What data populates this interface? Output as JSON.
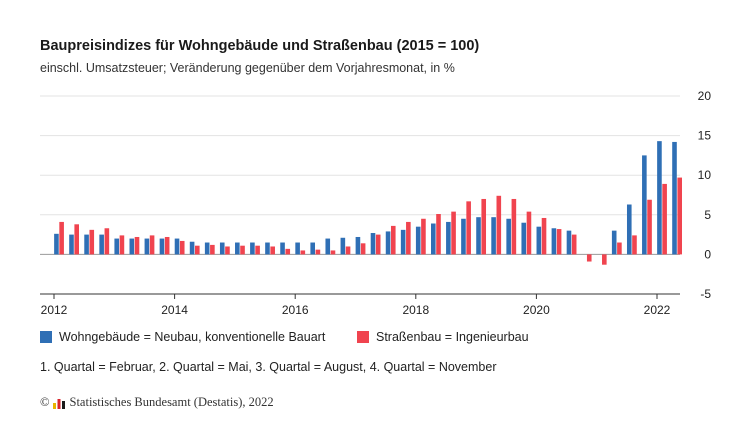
{
  "header": {
    "title": "Baupreisindizes für Wohngebäude und Straßenbau (2015 = 100)",
    "subtitle": "einschl. Umsatzsteuer; Veränderung gegenüber dem Vorjahresmonat, in %"
  },
  "legend": {
    "series1": "Wohngebäude = Neubau, konventionelle Bauart",
    "series2": "Straßenbau = Ingenieurbau"
  },
  "note": "1. Quartal = Februar, 2. Quartal = Mai, 3. Quartal = August, 4. Quartal = November",
  "source": {
    "copyright": "©",
    "text": "Statistisches Bundesamt (Destatis), 2022"
  },
  "colors": {
    "series1": "#2f6fb5",
    "series2": "#f0444f",
    "logo_bar1": "#e8b400",
    "logo_bar2": "#d9262c",
    "logo_bar3": "#1a1a1a"
  },
  "chart_data": {
    "type": "bar",
    "title": "Baupreisindizes für Wohngebäude und Straßenbau (2015 = 100)",
    "subtitle": "einschl. Umsatzsteuer; Veränderung gegenüber dem Vorjahresmonat, in %",
    "x_start": "2012 Q1",
    "x_end": "2022 Q3",
    "categories": [
      "2012 Q1",
      "2012 Q2",
      "2012 Q3",
      "2012 Q4",
      "2013 Q1",
      "2013 Q2",
      "2013 Q3",
      "2013 Q4",
      "2014 Q1",
      "2014 Q2",
      "2014 Q3",
      "2014 Q4",
      "2015 Q1",
      "2015 Q2",
      "2015 Q3",
      "2015 Q4",
      "2016 Q1",
      "2016 Q2",
      "2016 Q3",
      "2016 Q4",
      "2017 Q1",
      "2017 Q2",
      "2017 Q3",
      "2017 Q4",
      "2018 Q1",
      "2018 Q2",
      "2018 Q3",
      "2018 Q4",
      "2019 Q1",
      "2019 Q2",
      "2019 Q3",
      "2019 Q4",
      "2020 Q1",
      "2020 Q2",
      "2020 Q3",
      "2020 Q4",
      "2021 Q1",
      "2021 Q2",
      "2021 Q3",
      "2021 Q4",
      "2022 Q1",
      "2022 Q2"
    ],
    "series": [
      {
        "name": "Wohngebäude = Neubau, konventionelle Bauart",
        "values": [
          2.6,
          2.5,
          2.5,
          2.5,
          2.0,
          2.0,
          2.0,
          2.0,
          2.0,
          1.6,
          1.5,
          1.5,
          1.5,
          1.5,
          1.5,
          1.5,
          1.5,
          1.5,
          2.0,
          2.1,
          2.2,
          2.7,
          2.9,
          3.1,
          3.5,
          3.9,
          4.1,
          4.5,
          4.7,
          4.7,
          4.5,
          4.0,
          3.5,
          3.3,
          3.0,
          0.0,
          0.0,
          3.0,
          6.3,
          12.5,
          14.3,
          14.2
        ]
      },
      {
        "name": "Straßenbau = Ingenieurbau",
        "values": [
          4.1,
          3.8,
          3.1,
          3.3,
          2.4,
          2.2,
          2.4,
          2.2,
          1.7,
          1.1,
          1.2,
          1.0,
          1.1,
          1.1,
          1.0,
          0.7,
          0.5,
          0.6,
          0.5,
          1.0,
          1.4,
          2.5,
          3.6,
          4.1,
          4.5,
          5.1,
          5.4,
          6.7,
          7.0,
          7.4,
          7.0,
          5.4,
          4.6,
          3.2,
          2.5,
          -0.9,
          -1.3,
          1.5,
          2.4,
          6.9,
          8.9,
          9.7
        ]
      }
    ],
    "x_tick_labels": [
      "2012",
      "2014",
      "2016",
      "2018",
      "2020",
      "2022"
    ],
    "y_tick_labels": [
      "20",
      "15",
      "10",
      "5",
      "0",
      "-5"
    ],
    "ylim": [
      -5,
      20
    ],
    "grid": true,
    "legend_position": "bottom"
  }
}
